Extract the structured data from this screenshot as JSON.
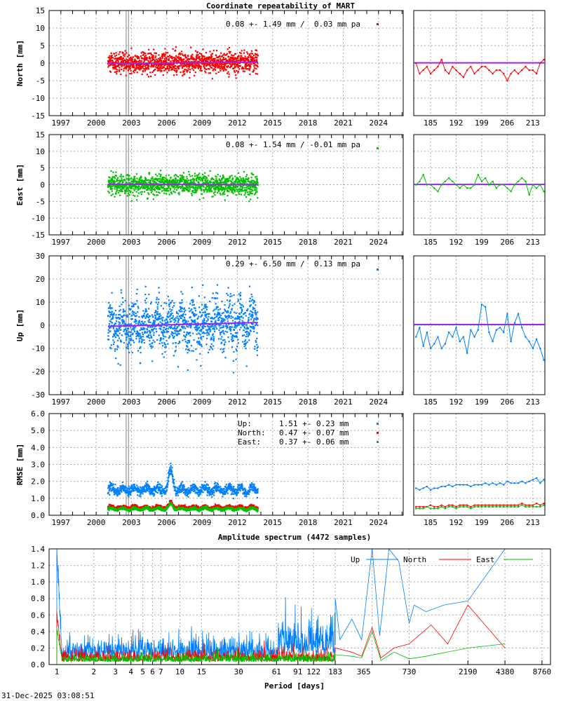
{
  "title": "Coordinate repeatability of MART",
  "timestamp": "31-Dec-2025 03:08:51",
  "chart_data": {
    "type": "scatter",
    "time_series": {
      "xlim": [
        1996.0,
        2026.1
      ],
      "xticks": [
        1997,
        2000,
        2003,
        2006,
        2009,
        2012,
        2015,
        2018,
        2021,
        2024
      ],
      "data_span": [
        2001.0,
        2013.75
      ],
      "vertical_markers": [
        2002.55,
        2002.75
      ],
      "recent_xlim": [
        180.4,
        216.3
      ],
      "recent_xticks": [
        185,
        192,
        199,
        206,
        213
      ],
      "recent_days_start": 181,
      "trend_color": "#a020f0",
      "panels": [
        {
          "key": "north",
          "ylabel": "North [mm]",
          "ylim": [
            -15,
            15
          ],
          "yticks": [
            -15,
            -10,
            -5,
            0,
            5,
            10,
            15
          ],
          "color": "#ff0000",
          "legend": "0.08 +- 1.49 mm /  0.03 mm pa",
          "mean": 0.08,
          "sigma": 1.49,
          "trend_pa": 0.03,
          "recent": [
            0,
            -3,
            -2,
            -1,
            -3,
            -2,
            -1,
            1,
            -2,
            -3,
            -1,
            -2,
            -3,
            -4,
            -2,
            -1,
            -3,
            -2,
            -1,
            -1,
            -2,
            -3,
            -2,
            -2,
            -3,
            -5,
            -3,
            -2,
            -3,
            -2,
            -1,
            -2,
            -2,
            -3,
            0,
            1
          ]
        },
        {
          "key": "east",
          "ylabel": "East [mm]",
          "ylim": [
            -15,
            15
          ],
          "yticks": [
            -15,
            -10,
            -5,
            0,
            5,
            10,
            15
          ],
          "color": "#00c000",
          "legend": "0.08 +- 1.54 mm / -0.01 mm pa",
          "mean": 0.08,
          "sigma": 1.54,
          "trend_pa": -0.01,
          "recent": [
            0,
            1,
            3,
            0,
            0,
            -1,
            -2,
            0,
            1,
            2,
            1,
            0,
            -1,
            0,
            -1,
            -1,
            0,
            3,
            1,
            2,
            0,
            1,
            -1,
            0,
            0,
            -1,
            -2,
            0,
            1,
            2,
            1,
            -3,
            0,
            -1,
            0,
            -2
          ]
        },
        {
          "key": "up",
          "ylabel": "Up [mm]",
          "ylim": [
            -30,
            30
          ],
          "yticks": [
            -30,
            -20,
            -10,
            0,
            10,
            20,
            30
          ],
          "color": "#0080ff",
          "legend": "0.29 +- 6.50 mm /  0.13 mm pa",
          "mean": 0.29,
          "sigma": 6.5,
          "trend_pa": 0.13,
          "recent": [
            -5,
            -1,
            -9,
            -3,
            -10,
            -8,
            -5,
            -10,
            -8,
            -3,
            -5,
            -1,
            -7,
            -5,
            -12,
            -2,
            -5,
            -2,
            9,
            8,
            -3,
            -7,
            -2,
            -1,
            -3,
            5,
            -7,
            1,
            5,
            -1,
            -5,
            -7,
            -10,
            -6,
            -10,
            -15
          ]
        }
      ],
      "rmse": {
        "ylabel": "RMSE [mm]",
        "ylim": [
          0,
          6
        ],
        "yticks": [
          "0.0",
          "1.0",
          "2.0",
          "3.0",
          "4.0",
          "5.0",
          "6.0"
        ],
        "legend": [
          {
            "label": "Up:",
            "value": "1.51 +- 0.23 mm",
            "mean": 1.51,
            "sigma": 0.23,
            "color": "#0080ff"
          },
          {
            "label": "North:",
            "value": "0.47 +- 0.07 mm",
            "mean": 0.47,
            "sigma": 0.07,
            "color": "#ff0000"
          },
          {
            "label": "East:",
            "value": "0.37 +- 0.06 mm",
            "mean": 0.37,
            "sigma": 0.06,
            "color": "#00c000"
          }
        ],
        "recent_up": [
          1.6,
          1.5,
          1.6,
          1.7,
          1.5,
          1.6,
          1.6,
          1.7,
          1.7,
          1.8,
          1.7,
          1.8,
          1.8,
          1.8,
          1.8,
          1.7,
          1.8,
          1.8,
          1.8,
          1.9,
          1.8,
          1.9,
          1.8,
          1.9,
          1.8,
          2.0,
          1.9,
          1.9,
          1.9,
          2.0,
          1.9,
          2.0,
          2.1,
          2.2,
          1.9,
          2.1
        ],
        "recent_north": [
          0.5,
          0.5,
          0.5,
          0.5,
          0.6,
          0.5,
          0.5,
          0.6,
          0.5,
          0.6,
          0.6,
          0.5,
          0.6,
          0.6,
          0.6,
          0.5,
          0.6,
          0.6,
          0.6,
          0.6,
          0.6,
          0.6,
          0.6,
          0.6,
          0.6,
          0.6,
          0.6,
          0.6,
          0.6,
          0.7,
          0.6,
          0.6,
          0.6,
          0.7,
          0.6,
          0.7
        ],
        "recent_east": [
          0.4,
          0.4,
          0.4,
          0.5,
          0.4,
          0.4,
          0.4,
          0.5,
          0.4,
          0.5,
          0.5,
          0.4,
          0.5,
          0.5,
          0.5,
          0.4,
          0.5,
          0.5,
          0.5,
          0.5,
          0.5,
          0.5,
          0.5,
          0.5,
          0.5,
          0.5,
          0.5,
          0.5,
          0.5,
          0.6,
          0.5,
          0.5,
          0.5,
          0.5,
          0.5,
          0.6
        ]
      }
    },
    "spectrum": {
      "type": "line",
      "title": "Amplitude spectrum (4472 samples)",
      "xlabel": "Period [days]",
      "xscale": "log",
      "xlim": [
        0.88,
        10500
      ],
      "xticks": [
        1,
        2,
        3,
        4,
        5,
        6,
        7,
        10,
        15,
        30,
        61,
        91,
        122,
        183,
        365,
        730,
        2190,
        4380,
        8760
      ],
      "ylim": [
        0,
        1.4
      ],
      "yticks": [
        "0.0",
        "0.2",
        "0.4",
        "0.6",
        "0.8",
        "1.0",
        "1.2",
        "1.4"
      ],
      "legend_position": "top-right",
      "series": [
        {
          "name": "Up",
          "color": "#0080ff",
          "noise_level": 0.22,
          "first": 1.4,
          "tail": [
            [
              183,
              0.8
            ],
            [
              200,
              0.3
            ],
            [
              250,
              0.55
            ],
            [
              300,
              0.3
            ],
            [
              365,
              1.4
            ],
            [
              420,
              0.35
            ],
            [
              500,
              1.4
            ],
            [
              600,
              1.25
            ],
            [
              730,
              0.5
            ],
            [
              800,
              0.72
            ],
            [
              1000,
              0.64
            ],
            [
              1400,
              0.72
            ],
            [
              2190,
              0.77
            ],
            [
              4380,
              1.4
            ]
          ]
        },
        {
          "name": "North",
          "color": "#ff0000",
          "noise_level": 0.08,
          "first": 0.65,
          "tail": [
            [
              183,
              0.2
            ],
            [
              250,
              0.15
            ],
            [
              300,
              0.1
            ],
            [
              365,
              0.45
            ],
            [
              430,
              0.08
            ],
            [
              550,
              0.2
            ],
            [
              730,
              0.25
            ],
            [
              1100,
              0.48
            ],
            [
              1500,
              0.25
            ],
            [
              2190,
              0.72
            ],
            [
              4380,
              0.2
            ]
          ]
        },
        {
          "name": "East",
          "color": "#00c000",
          "noise_level": 0.06,
          "first": 0.45,
          "tail": [
            [
              183,
              0.12
            ],
            [
              250,
              0.1
            ],
            [
              300,
              0.08
            ],
            [
              365,
              0.4
            ],
            [
              430,
              0.05
            ],
            [
              550,
              0.15
            ],
            [
              730,
              0.07
            ],
            [
              1000,
              0.1
            ],
            [
              2190,
              0.2
            ],
            [
              4380,
              0.25
            ]
          ]
        }
      ]
    }
  }
}
